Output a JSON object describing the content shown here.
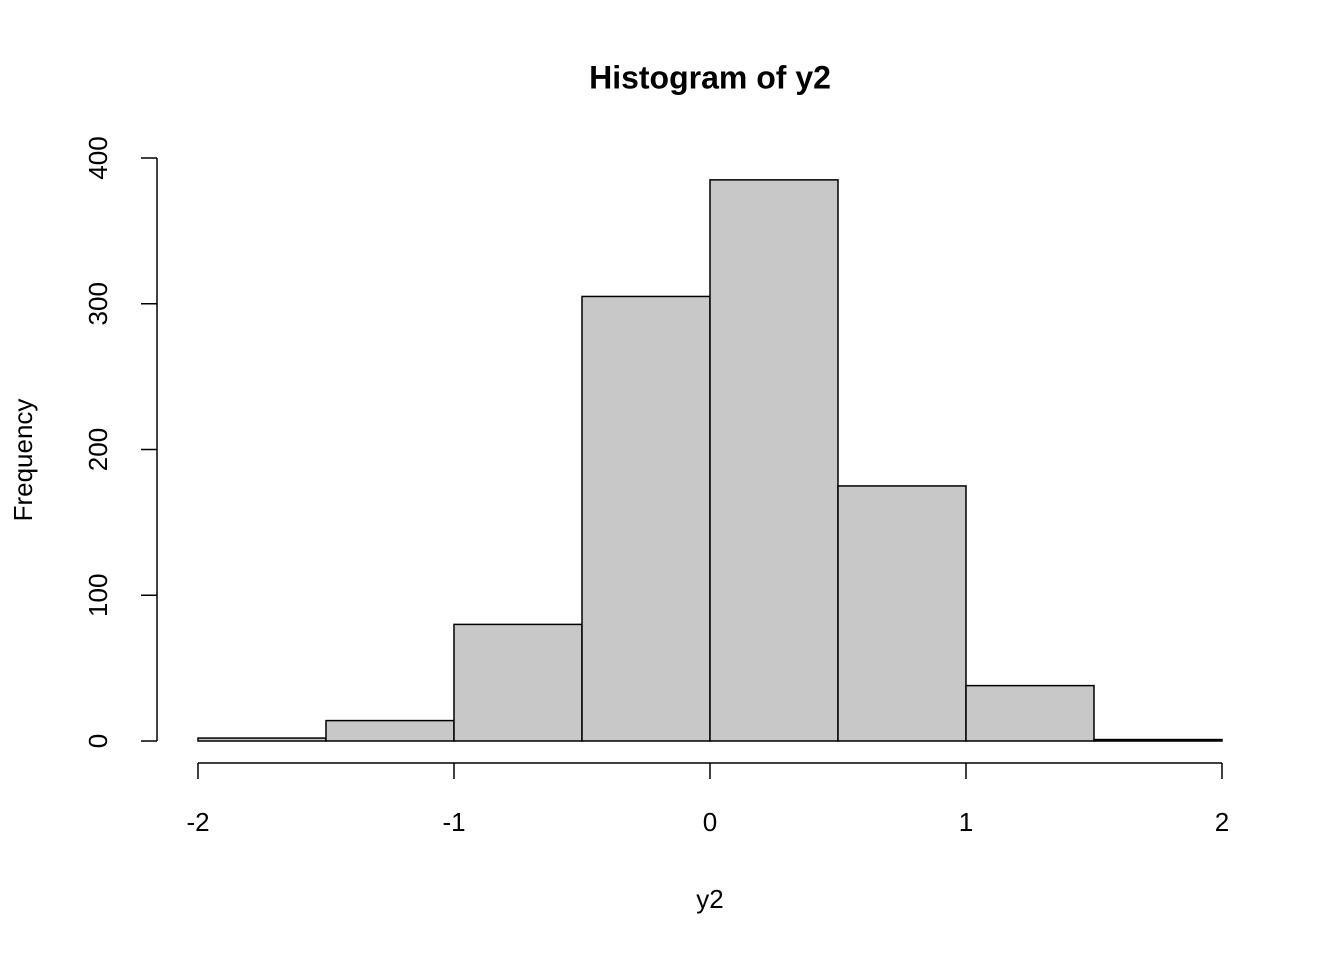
{
  "chart_data": {
    "type": "histogram",
    "title": "Histogram of y2",
    "xlabel": "y2",
    "ylabel": "Frequency",
    "bins": [
      -2,
      -1.5,
      -1,
      -0.5,
      0,
      0.5,
      1,
      1.5,
      2
    ],
    "values": [
      2,
      14,
      80,
      305,
      385,
      175,
      38,
      1
    ],
    "color": "#c8c8c8",
    "xlim": [
      -2,
      2
    ],
    "xticks": [
      -2,
      -1,
      0,
      1,
      2
    ],
    "ylim": [
      0,
      400
    ],
    "yticks": [
      0,
      100,
      200,
      300,
      400
    ]
  }
}
